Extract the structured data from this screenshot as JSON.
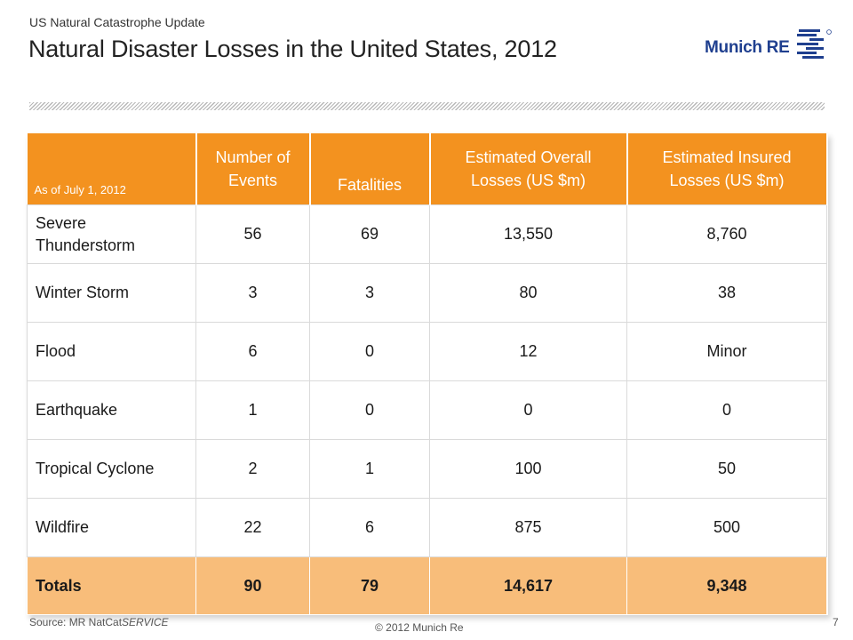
{
  "header": {
    "kicker": "US Natural Catastrophe Update",
    "title": "Natural Disaster Losses in the United States, 2012",
    "logo_text": "Munich RE"
  },
  "colors": {
    "header_orange": "#f3921f",
    "total_row": "#f8bd7a",
    "logo_blue": "#1f3f8f"
  },
  "table": {
    "as_of": "As of July 1, 2012",
    "columns": [
      {
        "line1": "Number of",
        "line2": "Events"
      },
      {
        "line1": "",
        "line2": "Fatalities"
      },
      {
        "line1": "Estimated Overall",
        "line2": "Losses (US $m)"
      },
      {
        "line1": "Estimated Insured",
        "line2": "Losses (US $m)"
      }
    ],
    "rows": [
      {
        "peril_line1": "Severe",
        "peril_line2": "Thunderstorm",
        "events": "56",
        "fatalities": "69",
        "overall": "13,550",
        "insured": "8,760"
      },
      {
        "peril": "Winter Storm",
        "events": "3",
        "fatalities": "3",
        "overall": "80",
        "insured": "38"
      },
      {
        "peril": "Flood",
        "events": "6",
        "fatalities": "0",
        "overall": "12",
        "insured": "Minor"
      },
      {
        "peril": "Earthquake",
        "events": "1",
        "fatalities": "0",
        "overall": "0",
        "insured": "0"
      },
      {
        "peril": "Tropical Cyclone",
        "events": "2",
        "fatalities": "1",
        "overall": "100",
        "insured": "50"
      },
      {
        "peril": "Wildfire",
        "events": "22",
        "fatalities": "6",
        "overall": "875",
        "insured": "500"
      }
    ],
    "totals": {
      "label": "Totals",
      "events": "90",
      "fatalities": "79",
      "overall": "14,617",
      "insured": "9,348"
    }
  },
  "footer": {
    "source_prefix": "Source: MR NatCat",
    "source_italic": "SERVICE",
    "copyright": "© 2012 Munich Re",
    "page_number": "7"
  }
}
